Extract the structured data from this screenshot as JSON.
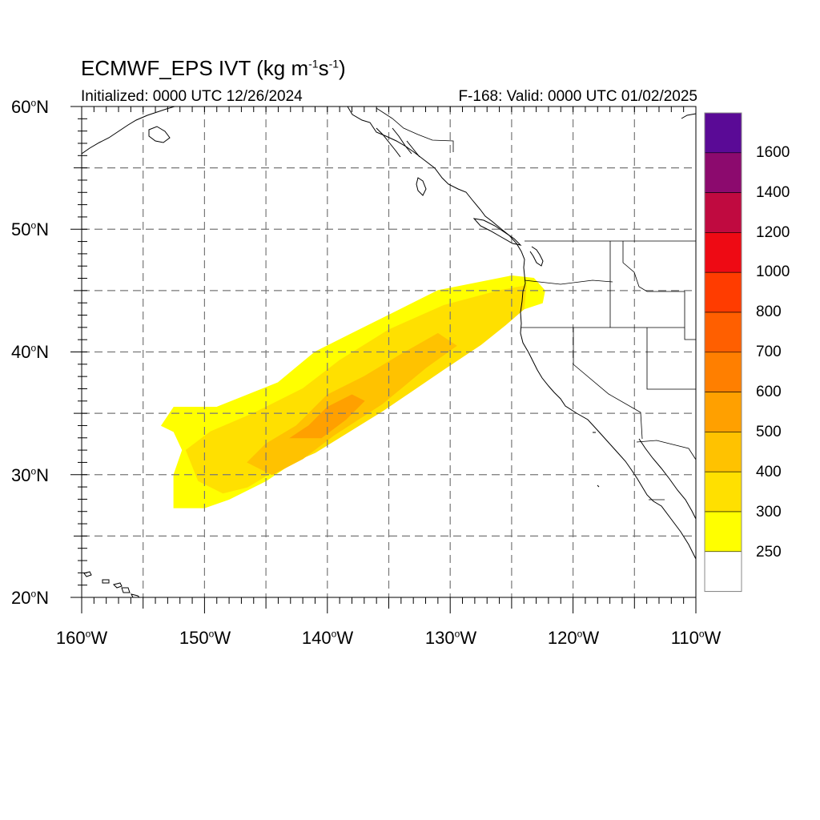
{
  "title": {
    "main": "ECMWF_EPS IVT (kg m",
    "exp1": "-1",
    "mid": "s",
    "exp2": "-1",
    "end": ")"
  },
  "subtitle_left": "Initialized: 0000 UTC 12/26/2024",
  "subtitle_right": "F-168: Valid: 0000 UTC 01/02/2025",
  "lat_labels": [
    {
      "num": "60",
      "deg": "o",
      "hem": "N"
    },
    {
      "num": "50",
      "deg": "o",
      "hem": "N"
    },
    {
      "num": "40",
      "deg": "o",
      "hem": "N"
    },
    {
      "num": "30",
      "deg": "o",
      "hem": "N"
    },
    {
      "num": "20",
      "deg": "o",
      "hem": "N"
    }
  ],
  "lon_labels": [
    {
      "num": "160",
      "deg": "o",
      "hem": "W"
    },
    {
      "num": "150",
      "deg": "o",
      "hem": "W"
    },
    {
      "num": "140",
      "deg": "o",
      "hem": "W"
    },
    {
      "num": "130",
      "deg": "o",
      "hem": "W"
    },
    {
      "num": "120",
      "deg": "o",
      "hem": "W"
    },
    {
      "num": "110",
      "deg": "o",
      "hem": "W"
    }
  ],
  "map_extent": {
    "lon": [
      -160,
      -110
    ],
    "lat": [
      20,
      60
    ]
  },
  "colorbar": {
    "labels": [
      "1600",
      "1400",
      "1200",
      "1000",
      "800",
      "700",
      "600",
      "500",
      "400",
      "300",
      "250"
    ],
    "colors_top_to_bottom": [
      "#5a0a96",
      "#8c0a6e",
      "#c00a40",
      "#ee0a14",
      "#ff3c00",
      "#ff5f00",
      "#ff7f00",
      "#ffa000",
      "#ffc200",
      "#ffe000",
      "#ffff00",
      "#ffffff"
    ]
  },
  "ivt_regions": [
    {
      "level": 250,
      "color": "#ffff00",
      "polygon": [
        [
          -153.5,
          34
        ],
        [
          -152.5,
          35.5
        ],
        [
          -149,
          35.5
        ],
        [
          -147,
          36.3
        ],
        [
          -144,
          37.5
        ],
        [
          -141,
          40
        ],
        [
          -138,
          41.5
        ],
        [
          -134,
          43.5
        ],
        [
          -131,
          45
        ],
        [
          -125,
          46.2
        ],
        [
          -123.2,
          46
        ],
        [
          -122.3,
          45
        ],
        [
          -122.5,
          44
        ],
        [
          -124,
          43.5
        ],
        [
          -125.5,
          42.5
        ],
        [
          -127.5,
          41
        ],
        [
          -130,
          39.5
        ],
        [
          -135,
          35.8
        ],
        [
          -141,
          32.2
        ],
        [
          -145,
          29.5
        ],
        [
          -148,
          28
        ],
        [
          -150,
          27.3
        ],
        [
          -152.5,
          27.3
        ],
        [
          -152.5,
          30
        ],
        [
          -151.8,
          32
        ],
        [
          -152.5,
          33.5
        ]
      ]
    },
    {
      "level": 300,
      "color": "#ffe000",
      "polygon": [
        [
          -151.5,
          32
        ],
        [
          -149.5,
          33.5
        ],
        [
          -146,
          35
        ],
        [
          -142,
          37
        ],
        [
          -139,
          39.3
        ],
        [
          -135,
          41.8
        ],
        [
          -130.5,
          43.8
        ],
        [
          -126,
          45
        ],
        [
          -123.8,
          45.4
        ],
        [
          -124,
          43.5
        ],
        [
          -125.5,
          42.2
        ],
        [
          -127.5,
          40.6
        ],
        [
          -130.5,
          38.6
        ],
        [
          -135.5,
          35.2
        ],
        [
          -141,
          31.8
        ],
        [
          -144,
          30.5
        ],
        [
          -146.5,
          29
        ],
        [
          -148.5,
          28.5
        ],
        [
          -150.5,
          29.5
        ]
      ]
    },
    {
      "level": 400,
      "color": "#ffc200",
      "polygon": [
        [
          -146.5,
          31
        ],
        [
          -145,
          32.5
        ],
        [
          -142.5,
          34
        ],
        [
          -140,
          36.5
        ],
        [
          -137,
          38
        ],
        [
          -134,
          39.8
        ],
        [
          -131,
          41.5
        ],
        [
          -129.5,
          40.5
        ],
        [
          -132,
          38.7
        ],
        [
          -135.5,
          35.8
        ],
        [
          -139.5,
          33.2
        ],
        [
          -142,
          31.3
        ],
        [
          -144.5,
          30
        ]
      ]
    },
    {
      "level": 500,
      "color": "#ffa000",
      "polygon": [
        [
          -143,
          33
        ],
        [
          -141.5,
          34
        ],
        [
          -140,
          35.5
        ],
        [
          -138,
          36.5
        ],
        [
          -137,
          36
        ],
        [
          -138.5,
          34.5
        ],
        [
          -140.5,
          33
        ]
      ]
    }
  ]
}
